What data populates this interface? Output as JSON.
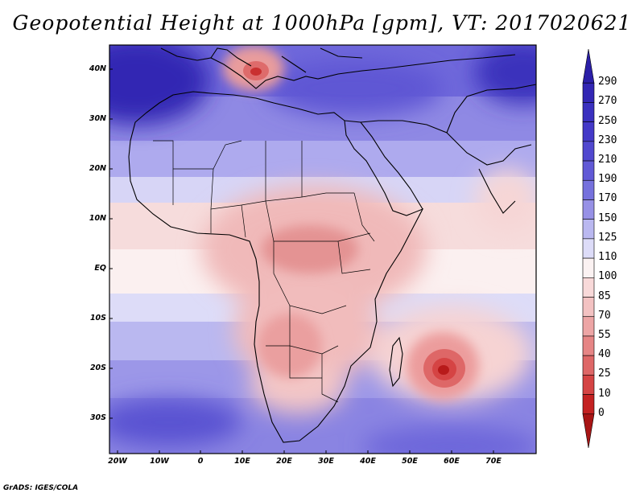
{
  "title": "Geopotential Height at 1000hPa [gpm], VT: 2017020621",
  "footer": "GrADS: IGES/COLA",
  "lat_labels": [
    "40N",
    "30N",
    "20N",
    "10N",
    "EQ",
    "10S",
    "20S",
    "30S"
  ],
  "lon_labels": [
    "20W",
    "10W",
    "0",
    "10E",
    "20E",
    "30E",
    "40E",
    "50E",
    "60E",
    "70E"
  ],
  "colorbar": {
    "labels": [
      "290",
      "270",
      "250",
      "230",
      "210",
      "190",
      "170",
      "150",
      "125",
      "110",
      "100",
      "85",
      "70",
      "55",
      "40",
      "25",
      "10",
      "0"
    ],
    "colors": [
      "#2b1fa8",
      "#3226b4",
      "#3a30bf",
      "#4439c8",
      "#5148cf",
      "#6159d6",
      "#7671dd",
      "#9791e6",
      "#bab8f0",
      "#dddcf8",
      "#fbf2f2",
      "#f8d9d9",
      "#f3c2c2",
      "#eda5a5",
      "#e68585",
      "#de6767",
      "#d54444",
      "#c42222",
      "#a81515"
    ]
  }
}
